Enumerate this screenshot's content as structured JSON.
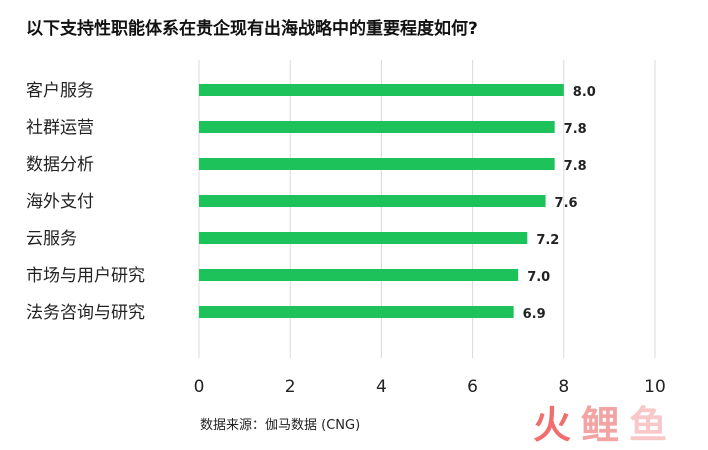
{
  "chart_data": {
    "type": "bar",
    "orientation": "horizontal",
    "title": "以下支持性职能体系在贵企现有出海战略中的重要程度如何?",
    "categories": [
      "客户服务",
      "社群运营",
      "数据分析",
      "海外支付",
      "云服务",
      "市场与用户研究",
      "法务咨询与研究"
    ],
    "values": [
      8.0,
      7.8,
      7.8,
      7.6,
      7.2,
      7.0,
      6.9
    ],
    "value_labels": [
      "8.0",
      "7.8",
      "7.8",
      "7.6",
      "7.2",
      "7.0",
      "6.9"
    ],
    "xlim": [
      0,
      10
    ],
    "xticks": [
      "0",
      "2",
      "4",
      "6",
      "8",
      "10"
    ],
    "grid": "vertical",
    "bar_color": "#1ec25a",
    "xlabel": "",
    "ylabel": ""
  },
  "source": "数据来源：伽马数据 (CNG)",
  "logo": {
    "glyphs": [
      "火",
      "鲤",
      "鱼"
    ],
    "colors": [
      "#f26d6d",
      "#f4a3a3",
      "#f8c8c8"
    ]
  }
}
